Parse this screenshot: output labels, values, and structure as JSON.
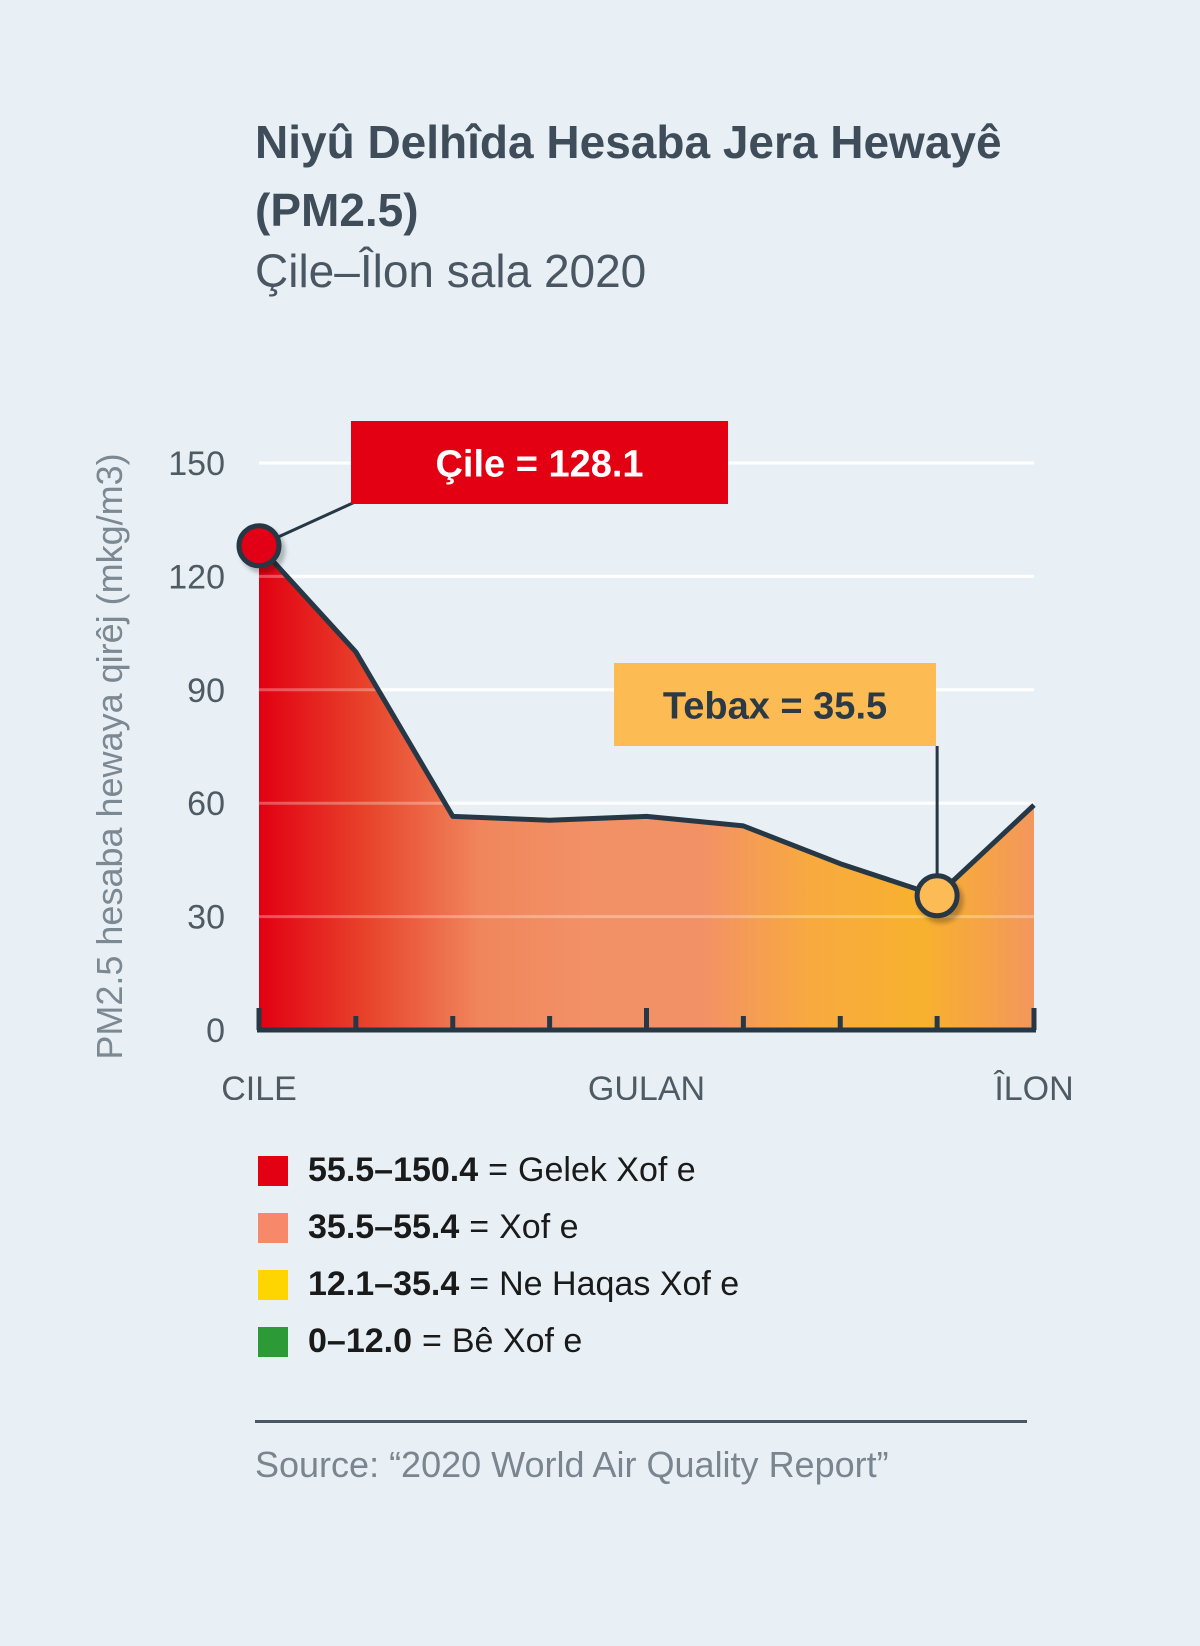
{
  "title": "Niyû Delhîda Hesaba Jera Hewayê (PM2.5)",
  "subtitle": "Çile–Îlon sala 2020",
  "chart_data": {
    "type": "area",
    "ylabel": "PM2.5 hesaba hewaya qirêj (mkg/m3)",
    "ylim": [
      0,
      150
    ],
    "yticks": [
      0,
      30,
      60,
      90,
      120,
      150
    ],
    "grid": true,
    "x_tick_labels": [
      "ÇILE",
      "GULAN",
      "ÎLON"
    ],
    "points": [
      128.1,
      100,
      56.5,
      55.5,
      56.5,
      54,
      44,
      35.5,
      59.5
    ],
    "line_color": "#263845",
    "gradient": [
      "#e20012",
      "#e8452c",
      "#f0865c",
      "#f39166",
      "#f39166",
      "#f8aa3f",
      "#f8b12e",
      "#f3975c"
    ],
    "annotations": [
      {
        "label": "Çile = 128.1",
        "point_index": 0,
        "color": "#e20012",
        "text_color": "#ffffff"
      },
      {
        "label": "Tebax = 35.5",
        "point_index": 7,
        "color": "#fdbb54",
        "text_color": "#2b3a45"
      }
    ]
  },
  "legend": [
    {
      "range": "55.5–150.4",
      "eq": "=",
      "label": "Gelek Xof e",
      "color": "#e20012"
    },
    {
      "range": "35.5–55.4",
      "eq": "=",
      "label": "Xof e",
      "color": "#f7896a"
    },
    {
      "range": "12.1–35.4",
      "eq": "=",
      "label": "Ne Haqas Xof e",
      "color": "#ffd500"
    },
    {
      "range": "0–12.0",
      "eq": "=",
      "label": "Bê Xof e",
      "color": "#2d9a38"
    }
  ],
  "source": "Source: “2020 World Air Quality Report”"
}
